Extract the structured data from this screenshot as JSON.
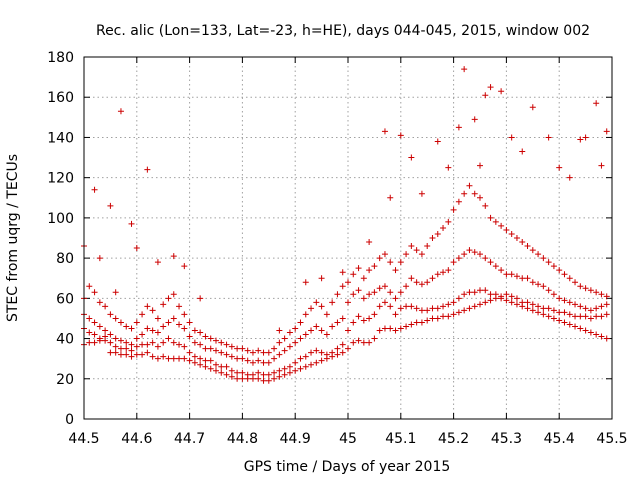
{
  "chart_data": {
    "type": "scatter",
    "title": "Rec. alic (Lon=133, Lat=-23, h=HE), days 044-045, 2015, window 002",
    "xlabel": "GPS time / Days of year 2015",
    "ylabel": "STEC from uqrg / TECUs",
    "xlim": [
      44.5,
      45.5
    ],
    "ylim": [
      0,
      180
    ],
    "xticks": [
      "44.5",
      "44.6",
      "44.7",
      "44.8",
      "44.9",
      "45",
      "45.1",
      "45.2",
      "45.3",
      "45.4",
      "45.5"
    ],
    "yticks": [
      "0",
      "20",
      "40",
      "60",
      "80",
      "100",
      "120",
      "140",
      "160",
      "180"
    ],
    "grid": true,
    "marker": "plus",
    "color": "#cc0000",
    "series": [
      {
        "x": [
          44.5,
          44.51,
          44.52,
          44.53,
          44.54,
          44.55,
          44.56,
          44.57,
          44.58,
          44.59,
          44.6,
          44.61,
          44.62,
          44.63,
          44.64,
          44.65,
          44.66,
          44.67,
          44.68,
          44.69,
          44.7,
          44.71,
          44.72,
          44.73,
          44.74,
          44.75,
          44.76,
          44.77,
          44.78,
          44.79,
          44.8,
          44.81,
          44.82,
          44.83,
          44.84,
          44.85,
          44.86,
          44.87,
          44.88,
          44.89,
          44.9,
          44.91,
          44.92,
          44.93,
          44.94,
          44.95,
          44.96,
          44.97,
          44.98,
          44.99,
          45.0,
          45.01,
          45.02,
          45.03,
          45.04,
          45.05,
          45.06,
          45.07,
          45.08,
          45.09,
          45.1,
          45.11,
          45.12,
          45.13,
          45.14,
          45.15,
          45.16,
          45.17,
          45.18,
          45.19,
          45.2,
          45.21,
          45.22,
          45.23,
          45.24,
          45.25,
          45.26,
          45.27,
          45.28,
          45.29,
          45.3,
          45.31,
          45.32,
          45.33,
          45.34,
          45.35,
          45.36,
          45.37,
          45.38,
          45.39,
          45.4,
          45.41,
          45.42,
          45.43,
          45.44,
          45.45,
          45.46,
          45.47,
          45.48,
          45.49
        ],
        "y": [
          37,
          38,
          38,
          39,
          39,
          33,
          33,
          32,
          32,
          31,
          32,
          32,
          33,
          31,
          30,
          31,
          30,
          30,
          30,
          30,
          29,
          28,
          27,
          26,
          25,
          24,
          23,
          22,
          21,
          20,
          20,
          20,
          20,
          20,
          19,
          19,
          20,
          21,
          22,
          23,
          24,
          25,
          26,
          27,
          28,
          29,
          30,
          31,
          32,
          33,
          35,
          38,
          39,
          38,
          38,
          40,
          44,
          45,
          45,
          44,
          45,
          46,
          47,
          48,
          48,
          49,
          50,
          50,
          51,
          51,
          52,
          53,
          54,
          55,
          56,
          57,
          58,
          59,
          60,
          60,
          59,
          58,
          57,
          56,
          55,
          54,
          53,
          52,
          51,
          50,
          49,
          48,
          47,
          46,
          45,
          44,
          43,
          42,
          41,
          40
        ]
      },
      {
        "x": [
          44.5,
          44.51,
          44.52,
          44.53,
          44.54,
          44.55,
          44.56,
          44.57,
          44.58,
          44.59,
          44.6,
          44.61,
          44.62,
          44.63,
          44.64,
          44.65,
          44.66,
          44.67,
          44.68,
          44.69,
          44.7,
          44.71,
          44.72,
          44.73,
          44.74,
          44.75,
          44.76,
          44.77,
          44.78,
          44.79,
          44.8,
          44.81,
          44.82,
          44.83,
          44.84,
          44.85,
          44.86,
          44.87,
          44.88,
          44.89,
          44.9,
          44.91,
          44.92,
          44.93,
          44.94,
          44.95,
          44.96,
          44.97,
          44.98,
          44.99,
          45.0,
          45.01,
          45.02,
          45.03,
          45.04,
          45.05,
          45.06,
          45.07,
          45.08,
          45.09,
          45.1,
          45.11,
          45.12,
          45.13,
          45.14,
          45.15,
          45.16,
          45.17,
          45.18,
          45.19,
          45.2,
          45.21,
          45.22,
          45.23,
          45.24,
          45.25,
          45.26,
          45.27,
          45.28,
          45.29,
          45.3,
          45.31,
          45.32,
          45.33,
          45.34,
          45.35,
          45.36,
          45.37,
          45.38,
          45.39,
          45.4,
          45.41,
          45.42,
          45.43,
          45.44,
          45.45,
          45.46,
          45.47,
          45.48,
          45.49
        ],
        "y": [
          45,
          43,
          42,
          40,
          41,
          38,
          36,
          35,
          35,
          34,
          36,
          37,
          37,
          38,
          36,
          38,
          40,
          38,
          37,
          36,
          33,
          31,
          30,
          29,
          29,
          27,
          26,
          26,
          24,
          23,
          23,
          22,
          22,
          23,
          22,
          22,
          23,
          24,
          25,
          26,
          28,
          30,
          31,
          33,
          34,
          33,
          32,
          33,
          35,
          37,
          44,
          48,
          51,
          49,
          50,
          52,
          56,
          58,
          56,
          52,
          55,
          56,
          56,
          55,
          54,
          54,
          55,
          55,
          56,
          57,
          58,
          60,
          62,
          63,
          63,
          64,
          64,
          62,
          62,
          61,
          62,
          61,
          60,
          58,
          58,
          57,
          56,
          55,
          55,
          54,
          53,
          53,
          52,
          51,
          51,
          51,
          50,
          51,
          51,
          52
        ]
      },
      {
        "x": [
          44.5,
          44.51,
          44.52,
          44.53,
          44.54,
          44.55,
          44.56,
          44.57,
          44.58,
          44.59,
          44.6,
          44.61,
          44.62,
          44.63,
          44.64,
          44.65,
          44.66,
          44.67,
          44.68,
          44.69,
          44.7,
          44.71,
          44.72,
          44.73,
          44.74,
          44.75,
          44.76,
          44.77,
          44.78,
          44.79,
          44.8,
          44.81,
          44.82,
          44.83,
          44.84,
          44.85,
          44.86,
          44.87,
          44.88,
          44.89,
          44.9,
          44.91,
          44.92,
          44.93,
          44.94,
          44.95,
          44.96,
          44.97,
          44.98,
          44.99,
          45.0,
          45.01,
          45.02,
          45.03,
          45.04,
          45.05,
          45.06,
          45.07,
          45.08,
          45.09,
          45.1,
          45.11,
          45.12,
          45.13,
          45.14,
          45.15,
          45.16,
          45.17,
          45.18,
          45.19,
          45.2,
          45.21,
          45.22,
          45.23,
          45.24,
          45.25,
          45.26,
          45.27,
          45.28,
          45.29,
          45.3,
          45.31,
          45.32,
          45.33,
          45.34,
          45.35,
          45.36,
          45.37,
          45.38,
          45.39,
          45.4,
          45.41,
          45.42,
          45.43,
          45.44,
          45.45,
          45.46,
          45.47,
          45.48,
          45.49
        ],
        "y": [
          52,
          50,
          48,
          46,
          44,
          42,
          40,
          39,
          38,
          37,
          40,
          42,
          45,
          44,
          43,
          46,
          48,
          50,
          47,
          45,
          41,
          38,
          37,
          35,
          35,
          34,
          33,
          32,
          31,
          30,
          30,
          29,
          28,
          29,
          28,
          28,
          30,
          32,
          34,
          36,
          38,
          40,
          42,
          44,
          46,
          44,
          42,
          46,
          48,
          50,
          58,
          62,
          64,
          60,
          62,
          63,
          65,
          66,
          63,
          60,
          63,
          66,
          70,
          68,
          67,
          68,
          70,
          72,
          73,
          74,
          78,
          80,
          82,
          84,
          83,
          82,
          80,
          78,
          76,
          74,
          72,
          72,
          71,
          70,
          70,
          68,
          67,
          66,
          64,
          62,
          60,
          59,
          58,
          57,
          56,
          55,
          54,
          55,
          56,
          57
        ]
      },
      {
        "x": [
          44.5,
          44.51,
          44.52,
          44.53,
          44.54,
          44.55,
          44.56,
          44.57,
          44.58,
          44.59,
          44.6,
          44.61,
          44.62,
          44.63,
          44.64,
          44.65,
          44.66,
          44.67,
          44.68,
          44.69,
          44.7,
          44.71,
          44.72,
          44.73,
          44.74,
          44.75,
          44.76,
          44.77,
          44.78,
          44.79,
          44.8,
          44.81,
          44.82,
          44.83,
          44.84,
          44.85,
          44.86,
          44.87,
          44.88,
          44.89,
          44.9,
          44.91,
          44.92,
          44.93,
          44.94,
          44.95,
          44.96,
          44.97,
          44.98,
          44.99,
          45.0,
          45.01,
          45.02,
          45.03,
          45.04,
          45.05,
          45.06,
          45.07,
          45.08,
          45.09,
          45.1,
          45.11,
          45.12,
          45.13,
          45.14,
          45.15,
          45.16,
          45.17,
          45.18,
          45.19,
          45.2,
          45.21,
          45.22,
          45.23,
          45.24,
          45.25,
          45.26,
          45.27,
          45.28,
          45.29,
          45.3,
          45.31,
          45.32,
          45.33,
          45.34,
          45.35,
          45.36,
          45.37,
          45.38,
          45.39,
          45.4,
          45.41,
          45.42,
          45.43,
          45.44,
          45.45,
          45.46,
          45.47,
          45.48,
          45.49
        ],
        "y": [
          60,
          66,
          63,
          58,
          56,
          52,
          50,
          48,
          46,
          45,
          48,
          52,
          56,
          54,
          50,
          57,
          60,
          62,
          56,
          52,
          48,
          44,
          43,
          41,
          40,
          39,
          38,
          37,
          36,
          35,
          35,
          34,
          33,
          34,
          33,
          33,
          35,
          38,
          40,
          43,
          45,
          48,
          52,
          55,
          58,
          56,
          52,
          58,
          62,
          66,
          68,
          72,
          75,
          70,
          74,
          76,
          80,
          82,
          78,
          74,
          78,
          82,
          86,
          84,
          82,
          86,
          90,
          92,
          95,
          98,
          104,
          108,
          112,
          116,
          112,
          110,
          106,
          100,
          98,
          96,
          94,
          92,
          90,
          88,
          86,
          84,
          82,
          80,
          78,
          76,
          74,
          72,
          70,
          68,
          66,
          65,
          64,
          63,
          62,
          61
        ]
      },
      {
        "x": [
          44.5,
          44.52,
          44.53,
          44.55,
          44.56,
          44.57,
          44.59,
          44.6,
          44.62,
          44.64,
          44.67,
          44.69,
          44.72,
          44.87,
          44.92,
          44.95,
          44.99,
          45.04,
          45.07,
          45.08,
          45.1,
          45.12,
          45.14,
          45.17,
          45.19,
          45.21,
          45.22,
          45.24,
          45.25,
          45.26,
          45.27,
          45.29,
          45.31,
          45.33,
          45.35,
          45.38,
          45.4,
          45.42,
          45.44,
          45.45,
          45.47,
          45.48,
          45.49
        ],
        "y": [
          86,
          114,
          80,
          106,
          63,
          153,
          97,
          85,
          124,
          78,
          81,
          76,
          60,
          44,
          68,
          70,
          73,
          88,
          143,
          110,
          141,
          130,
          112,
          138,
          125,
          145,
          174,
          149,
          126,
          161,
          165,
          163,
          140,
          133,
          155,
          140,
          125,
          120,
          139,
          140,
          157,
          126,
          143
        ]
      }
    ]
  }
}
